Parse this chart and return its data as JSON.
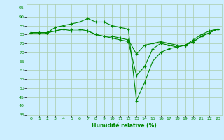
{
  "xlabel": "Humidité relative (%)",
  "bg_color": "#cceeff",
  "grid_color": "#aaccaa",
  "line_color": "#008800",
  "marker": "+",
  "xlim": [
    -0.5,
    23.5
  ],
  "ylim": [
    35,
    97
  ],
  "yticks": [
    35,
    40,
    45,
    50,
    55,
    60,
    65,
    70,
    75,
    80,
    85,
    90,
    95
  ],
  "xticks": [
    0,
    1,
    2,
    3,
    4,
    5,
    6,
    7,
    8,
    9,
    10,
    11,
    12,
    13,
    14,
    15,
    16,
    17,
    18,
    19,
    20,
    21,
    22,
    23
  ],
  "series1": [
    81,
    81,
    81,
    84,
    85,
    86,
    87,
    89,
    87,
    87,
    85,
    84,
    83,
    43,
    53,
    65,
    70,
    72,
    73,
    74,
    77,
    80,
    82,
    83
  ],
  "series2": [
    81,
    81,
    81,
    82,
    83,
    83,
    83,
    82,
    80,
    79,
    78,
    77,
    76,
    57,
    62,
    72,
    75,
    74,
    73,
    74,
    76,
    79,
    81,
    83
  ],
  "series3": [
    81,
    81,
    81,
    82,
    83,
    82,
    82,
    82,
    80,
    79,
    79,
    78,
    77,
    69,
    74,
    75,
    76,
    75,
    74,
    74,
    76,
    79,
    81,
    83
  ]
}
